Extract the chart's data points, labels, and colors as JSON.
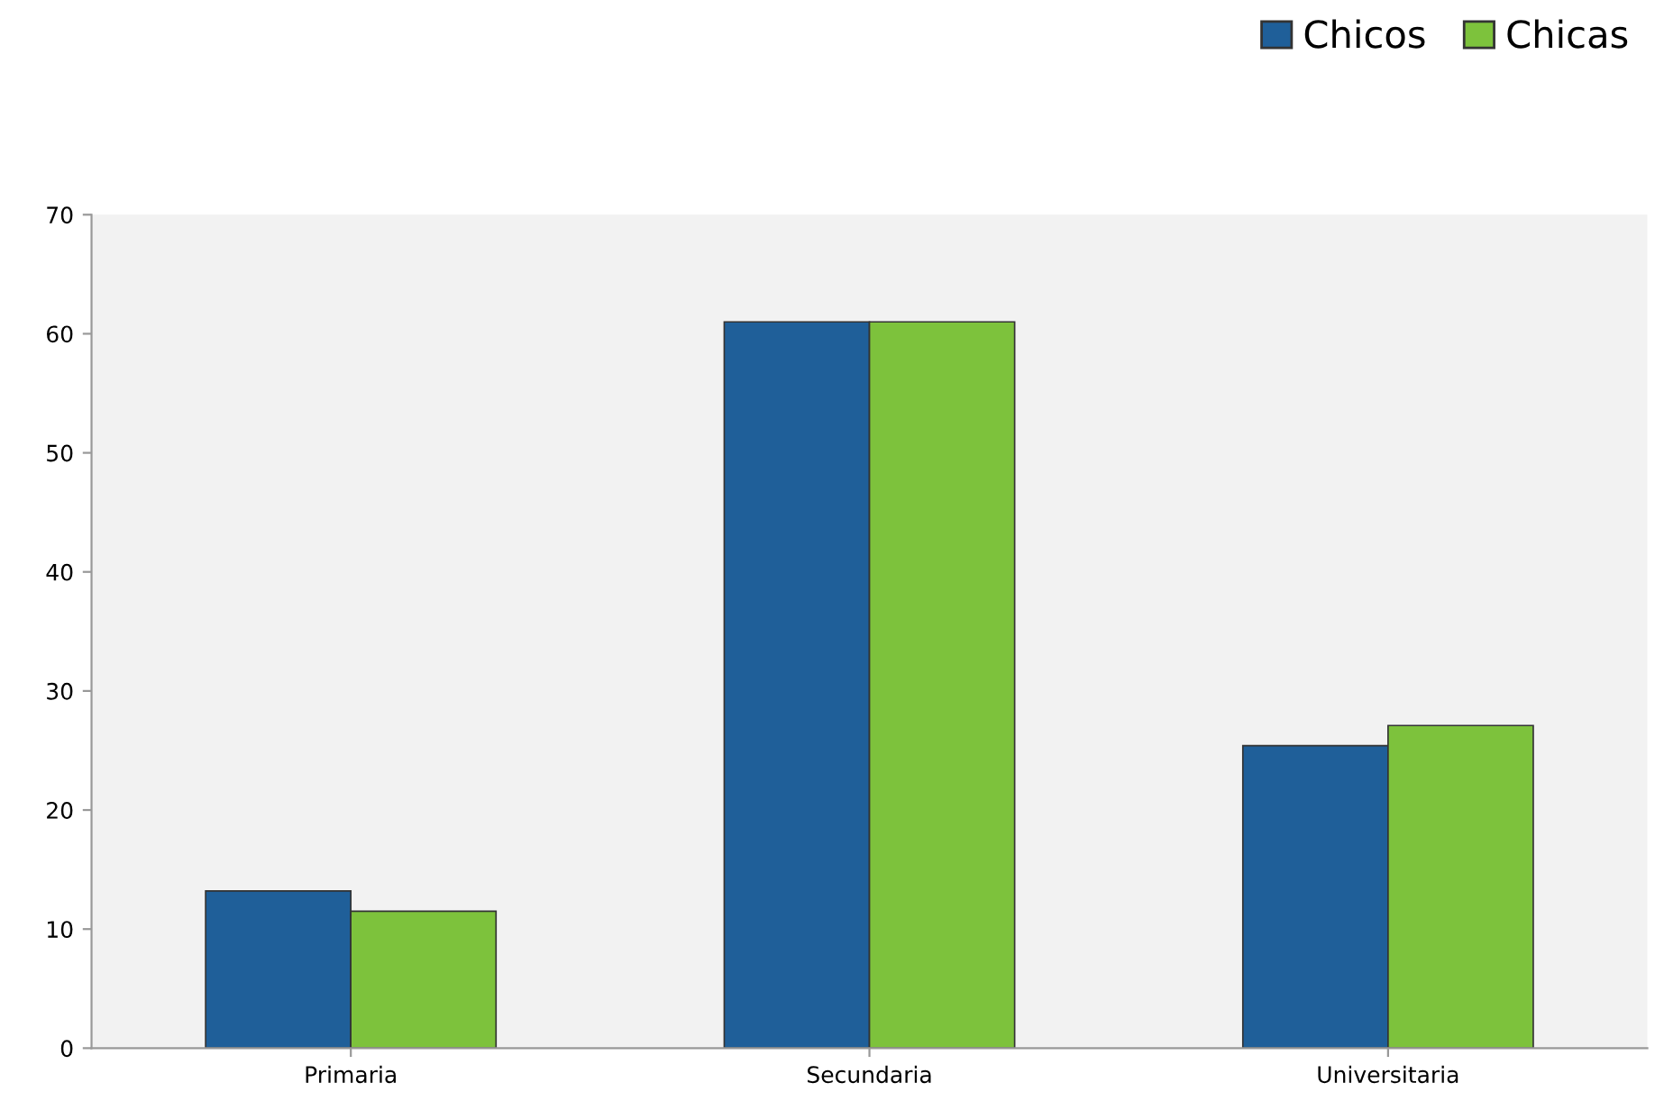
{
  "chart_data": {
    "type": "bar",
    "categories": [
      "Primaria",
      "Secundaria",
      "Universitaria"
    ],
    "series": [
      {
        "name": "Chicos",
        "color": "#1f5f99",
        "values": [
          13.2,
          61,
          25.4
        ]
      },
      {
        "name": "Chicas",
        "color": "#7dc23c",
        "values": [
          11.5,
          61,
          27.1
        ]
      }
    ],
    "ylim": [
      0,
      70
    ],
    "yticks": [
      0,
      10,
      20,
      30,
      40,
      50,
      60,
      70
    ],
    "grid": false,
    "legend": "top right"
  }
}
